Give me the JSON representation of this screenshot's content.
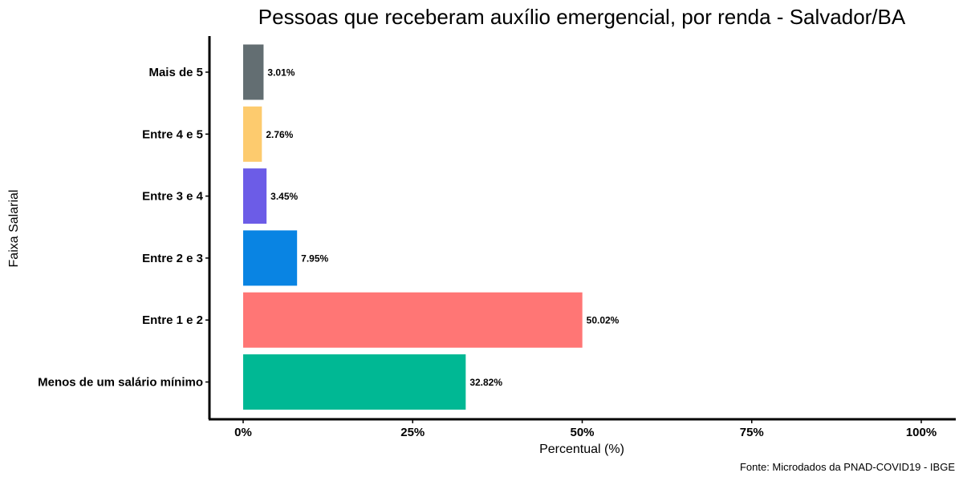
{
  "chart_data": {
    "type": "bar",
    "orientation": "horizontal",
    "title": "Pessoas que receberam auxílio emergencial, por renda - Salvador/BA",
    "xlabel": "Percentual (%)",
    "ylabel": "Faixa Salarial",
    "caption": "Fonte: Microdados da PNAD-COVID19 - IBGE",
    "categories": [
      "Menos de um salário mínimo",
      "Entre 1 e 2",
      "Entre 2 e 3",
      "Entre 3 e 4",
      "Entre 4 e 5",
      "Mais de 5"
    ],
    "values": [
      32.82,
      50.02,
      7.95,
      3.45,
      2.76,
      3.01
    ],
    "data_labels": [
      "32.82%",
      "50.02%",
      "7.95%",
      "3.45%",
      "2.76%",
      "3.01%"
    ],
    "colors": [
      "#00b894",
      "#ff7675",
      "#0984e3",
      "#6c5ce7",
      "#fdcb6e",
      "#636e72"
    ],
    "xlim": [
      0,
      100
    ],
    "x_ticks": [
      0,
      25,
      50,
      75,
      100
    ],
    "x_tick_labels": [
      "0%",
      "25%",
      "50%",
      "75%",
      "100%"
    ],
    "grid": false,
    "legend": "none"
  }
}
